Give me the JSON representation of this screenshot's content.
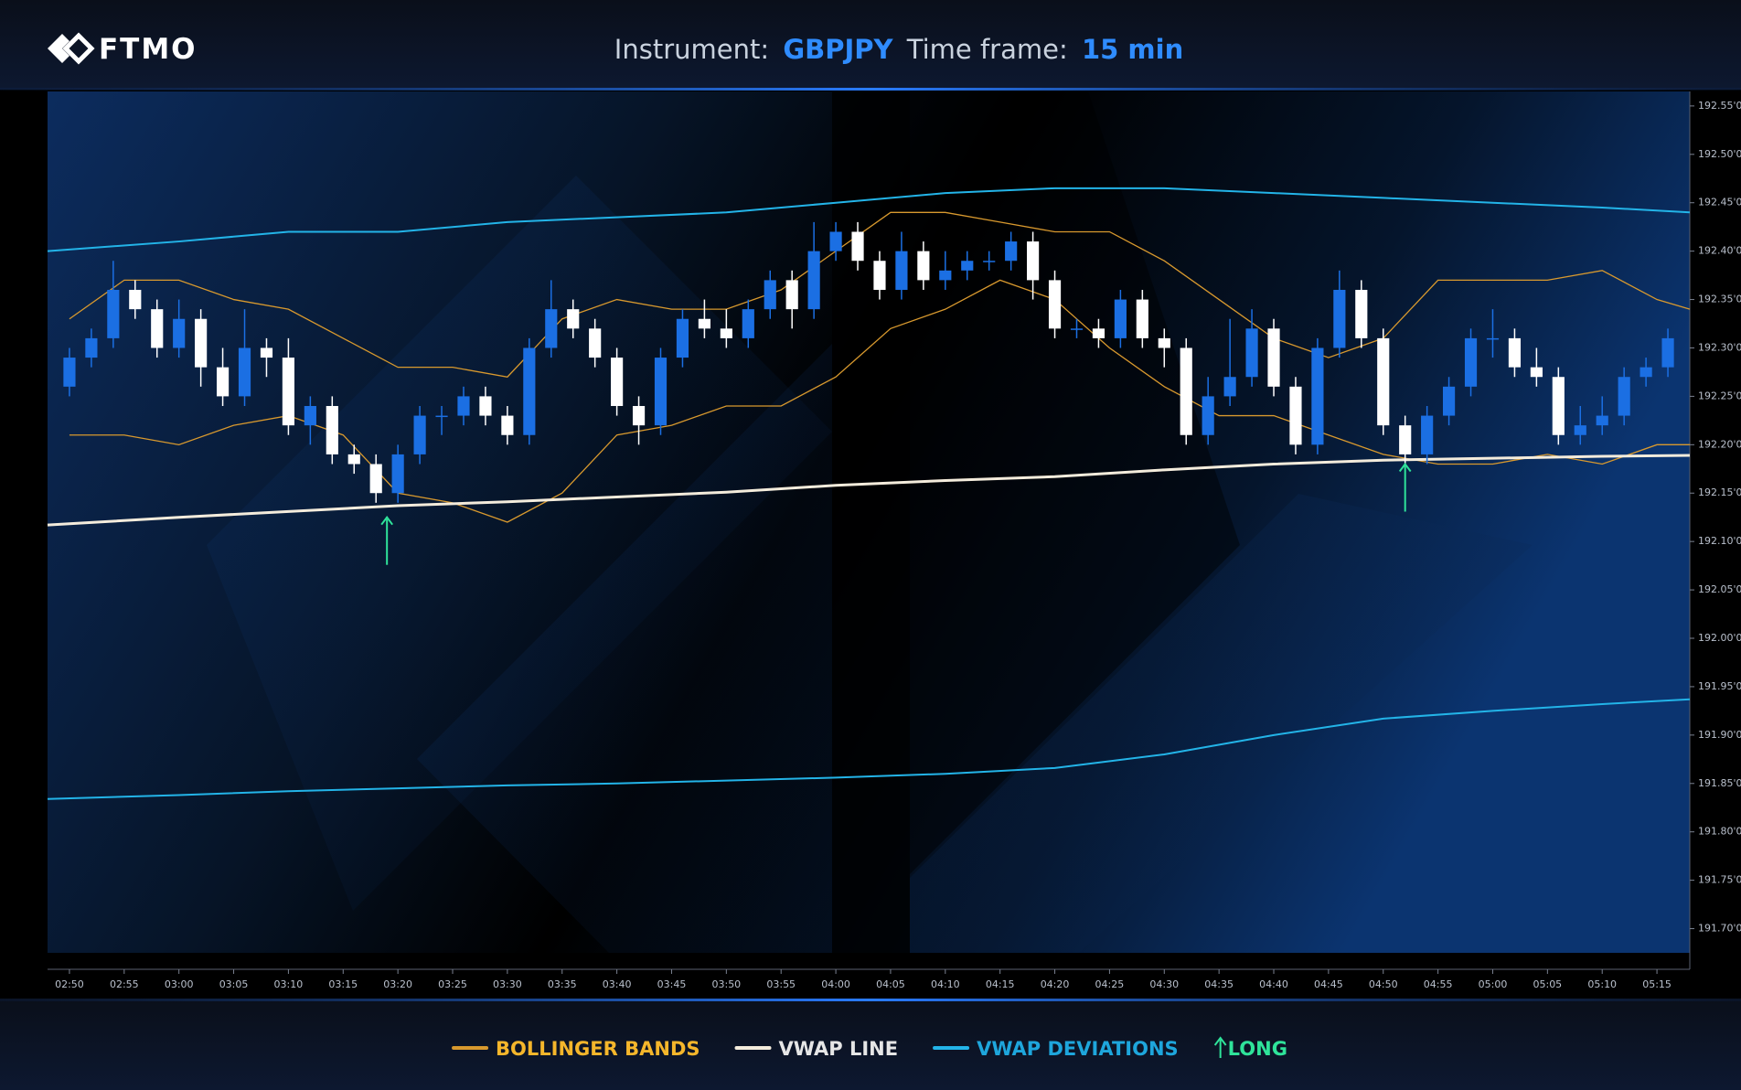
{
  "header": {
    "logo": "FTMO",
    "instrument_label": "Instrument:",
    "instrument": "GBPJPY",
    "timeframe_label": "Time frame:",
    "timeframe": "15 min"
  },
  "chart_data": {
    "type": "candlestick",
    "grid": false,
    "xlim": [
      168,
      318
    ],
    "ylim": [
      191.675,
      192.565
    ],
    "xticks": [
      {
        "value": 170,
        "label": "02:50"
      },
      {
        "value": 175,
        "label": "02:55"
      },
      {
        "value": 180,
        "label": "03:00"
      },
      {
        "value": 185,
        "label": "03:05"
      },
      {
        "value": 190,
        "label": "03:10"
      },
      {
        "value": 195,
        "label": "03:15"
      },
      {
        "value": 200,
        "label": "03:20"
      },
      {
        "value": 205,
        "label": "03:25"
      },
      {
        "value": 210,
        "label": "03:30"
      },
      {
        "value": 215,
        "label": "03:35"
      },
      {
        "value": 220,
        "label": "03:40"
      },
      {
        "value": 225,
        "label": "03:45"
      },
      {
        "value": 230,
        "label": "03:50"
      },
      {
        "value": 235,
        "label": "03:55"
      },
      {
        "value": 240,
        "label": "04:00"
      },
      {
        "value": 245,
        "label": "04:05"
      },
      {
        "value": 250,
        "label": "04:10"
      },
      {
        "value": 255,
        "label": "04:15"
      },
      {
        "value": 260,
        "label": "04:20"
      },
      {
        "value": 265,
        "label": "04:25"
      },
      {
        "value": 270,
        "label": "04:30"
      },
      {
        "value": 275,
        "label": "04:35"
      },
      {
        "value": 280,
        "label": "04:40"
      },
      {
        "value": 285,
        "label": "04:45"
      },
      {
        "value": 290,
        "label": "04:50"
      },
      {
        "value": 295,
        "label": "04:55"
      },
      {
        "value": 300,
        "label": "05:00"
      },
      {
        "value": 305,
        "label": "05:05"
      },
      {
        "value": 310,
        "label": "05:10"
      },
      {
        "value": 315,
        "label": "05:15"
      }
    ],
    "yticks": [
      {
        "value": 192.55,
        "label": "192.55'0"
      },
      {
        "value": 192.5,
        "label": "192.50'0"
      },
      {
        "value": 192.45,
        "label": "192.45'0"
      },
      {
        "value": 192.4,
        "label": "192.40'0"
      },
      {
        "value": 192.35,
        "label": "192.35'0"
      },
      {
        "value": 192.3,
        "label": "192.30'0"
      },
      {
        "value": 192.25,
        "label": "192.25'0"
      },
      {
        "value": 192.2,
        "label": "192.20'0"
      },
      {
        "value": 192.15,
        "label": "192.15'0"
      },
      {
        "value": 192.1,
        "label": "192.10'0"
      },
      {
        "value": 192.05,
        "label": "192.05'0"
      },
      {
        "value": 192.0,
        "label": "192.00'0"
      },
      {
        "value": 191.95,
        "label": "191.95'0"
      },
      {
        "value": 191.9,
        "label": "191.90'0"
      },
      {
        "value": 191.85,
        "label": "191.85'0"
      },
      {
        "value": 191.8,
        "label": "191.80'0"
      },
      {
        "value": 191.75,
        "label": "191.75'0"
      },
      {
        "value": 191.7,
        "label": "191.70'0"
      }
    ],
    "candles": {
      "up_color": "#1b6fe3",
      "down_color": "#ffffff",
      "x": [
        170,
        172,
        174,
        176,
        178,
        180,
        182,
        184,
        186,
        188,
        190,
        192,
        194,
        196,
        198,
        200,
        202,
        204,
        206,
        208,
        210,
        212,
        214,
        216,
        218,
        220,
        222,
        224,
        226,
        228,
        230,
        232,
        234,
        236,
        238,
        240,
        242,
        244,
        246,
        248,
        250,
        252,
        254,
        256,
        258,
        260,
        262,
        264,
        266,
        268,
        270,
        272,
        274,
        276,
        278,
        280,
        282,
        284,
        286,
        288,
        290,
        292,
        294,
        296,
        298,
        300,
        302,
        304,
        306,
        308,
        310,
        312,
        314,
        316
      ],
      "open": [
        192.26,
        192.29,
        192.31,
        192.36,
        192.34,
        192.3,
        192.33,
        192.28,
        192.25,
        192.3,
        192.29,
        192.22,
        192.24,
        192.19,
        192.18,
        192.15,
        192.19,
        192.23,
        192.23,
        192.25,
        192.23,
        192.21,
        192.3,
        192.34,
        192.32,
        192.29,
        192.24,
        192.22,
        192.29,
        192.33,
        192.32,
        192.31,
        192.34,
        192.37,
        192.34,
        192.4,
        192.42,
        192.39,
        192.36,
        192.4,
        192.37,
        192.38,
        192.39,
        192.39,
        192.41,
        192.37,
        192.32,
        192.32,
        192.31,
        192.35,
        192.31,
        192.3,
        192.21,
        192.25,
        192.27,
        192.32,
        192.26,
        192.2,
        192.3,
        192.36,
        192.31,
        192.22,
        192.19,
        192.23,
        192.26,
        192.31,
        192.31,
        192.28,
        192.27,
        192.21,
        192.22,
        192.23,
        192.27,
        192.28
      ],
      "high": [
        192.3,
        192.32,
        192.39,
        192.37,
        192.35,
        192.35,
        192.34,
        192.3,
        192.34,
        192.31,
        192.31,
        192.25,
        192.25,
        192.2,
        192.19,
        192.2,
        192.24,
        192.24,
        192.26,
        192.26,
        192.24,
        192.31,
        192.37,
        192.35,
        192.33,
        192.3,
        192.25,
        192.3,
        192.34,
        192.35,
        192.34,
        192.35,
        192.38,
        192.38,
        192.43,
        192.43,
        192.43,
        192.4,
        192.42,
        192.41,
        192.4,
        192.4,
        192.4,
        192.42,
        192.42,
        192.38,
        192.33,
        192.33,
        192.36,
        192.36,
        192.32,
        192.31,
        192.27,
        192.33,
        192.34,
        192.33,
        192.27,
        192.31,
        192.38,
        192.37,
        192.32,
        192.23,
        192.24,
        192.27,
        192.32,
        192.34,
        192.32,
        192.3,
        192.28,
        192.24,
        192.25,
        192.28,
        192.29,
        192.32
      ],
      "low": [
        192.25,
        192.28,
        192.3,
        192.33,
        192.29,
        192.29,
        192.26,
        192.24,
        192.24,
        192.27,
        192.21,
        192.2,
        192.18,
        192.17,
        192.14,
        192.14,
        192.18,
        192.21,
        192.22,
        192.22,
        192.2,
        192.2,
        192.29,
        192.31,
        192.28,
        192.23,
        192.2,
        192.21,
        192.28,
        192.31,
        192.3,
        192.3,
        192.33,
        192.32,
        192.33,
        192.39,
        192.38,
        192.35,
        192.35,
        192.36,
        192.36,
        192.37,
        192.38,
        192.38,
        192.35,
        192.31,
        192.31,
        192.3,
        192.3,
        192.3,
        192.28,
        192.2,
        192.2,
        192.24,
        192.26,
        192.25,
        192.19,
        192.19,
        192.29,
        192.3,
        192.21,
        192.18,
        192.18,
        192.22,
        192.25,
        192.29,
        192.27,
        192.26,
        192.2,
        192.2,
        192.21,
        192.22,
        192.26,
        192.27
      ],
      "close": [
        192.29,
        192.31,
        192.36,
        192.34,
        192.3,
        192.33,
        192.28,
        192.25,
        192.3,
        192.29,
        192.22,
        192.24,
        192.19,
        192.18,
        192.15,
        192.19,
        192.23,
        192.23,
        192.25,
        192.23,
        192.21,
        192.3,
        192.34,
        192.32,
        192.29,
        192.24,
        192.22,
        192.29,
        192.33,
        192.32,
        192.31,
        192.34,
        192.37,
        192.34,
        192.4,
        192.42,
        192.39,
        192.36,
        192.4,
        192.37,
        192.38,
        192.39,
        192.39,
        192.41,
        192.37,
        192.32,
        192.32,
        192.31,
        192.35,
        192.31,
        192.3,
        192.21,
        192.25,
        192.27,
        192.32,
        192.26,
        192.2,
        192.3,
        192.36,
        192.31,
        192.22,
        192.19,
        192.23,
        192.26,
        192.31,
        192.31,
        192.28,
        192.27,
        192.21,
        192.22,
        192.23,
        192.27,
        192.28,
        192.31
      ]
    },
    "series": [
      {
        "name": "BOLLINGER BANDS",
        "color": "#d8992e",
        "label_color": "#f5b62b",
        "kind": "band",
        "x": [
          170,
          175,
          180,
          185,
          190,
          195,
          200,
          205,
          210,
          215,
          220,
          225,
          230,
          235,
          240,
          245,
          250,
          255,
          260,
          265,
          270,
          275,
          280,
          285,
          290,
          295,
          300,
          305,
          310,
          315,
          318
        ],
        "upper": [
          192.33,
          192.37,
          192.37,
          192.35,
          192.34,
          192.31,
          192.28,
          192.28,
          192.27,
          192.33,
          192.35,
          192.34,
          192.34,
          192.36,
          192.4,
          192.44,
          192.44,
          192.43,
          192.42,
          192.42,
          192.39,
          192.35,
          192.31,
          192.29,
          192.31,
          192.37,
          192.37,
          192.37,
          192.38,
          192.35,
          192.34
        ],
        "lower": [
          192.21,
          192.21,
          192.2,
          192.22,
          192.23,
          192.21,
          192.15,
          192.14,
          192.12,
          192.15,
          192.21,
          192.22,
          192.24,
          192.24,
          192.27,
          192.32,
          192.34,
          192.37,
          192.35,
          192.3,
          192.26,
          192.23,
          192.23,
          192.21,
          192.19,
          192.18,
          192.18,
          192.19,
          192.18,
          192.2,
          192.2
        ]
      },
      {
        "name": "VWAP LINE",
        "color": "#f4ecdc",
        "label_color": "#e6e6e6",
        "kind": "line",
        "x": [
          168,
          180,
          190,
          200,
          210,
          220,
          230,
          240,
          250,
          260,
          270,
          280,
          290,
          300,
          310,
          318
        ],
        "values": [
          192.117,
          192.125,
          192.131,
          192.137,
          192.141,
          192.146,
          192.151,
          192.158,
          192.163,
          192.167,
          192.174,
          192.18,
          192.184,
          192.186,
          192.188,
          192.189
        ]
      },
      {
        "name": "VWAP DEVIATIONS",
        "color": "#23b4e8",
        "label_color": "#1ea6dc",
        "kind": "band",
        "x": [
          168,
          180,
          190,
          200,
          210,
          220,
          230,
          240,
          250,
          260,
          270,
          280,
          290,
          300,
          310,
          318
        ],
        "upper": [
          192.4,
          192.41,
          192.42,
          192.42,
          192.43,
          192.435,
          192.44,
          192.45,
          192.46,
          192.465,
          192.465,
          192.46,
          192.455,
          192.45,
          192.445,
          192.44
        ],
        "lower": [
          191.834,
          191.838,
          191.842,
          191.845,
          191.848,
          191.85,
          191.853,
          191.856,
          191.86,
          191.866,
          191.88,
          191.9,
          191.917,
          191.925,
          191.932,
          191.937
        ]
      }
    ],
    "signals": {
      "name": "LONG",
      "color": "#2fe39a",
      "x": [
        199,
        292
      ],
      "values": [
        192.125,
        192.18
      ]
    }
  }
}
